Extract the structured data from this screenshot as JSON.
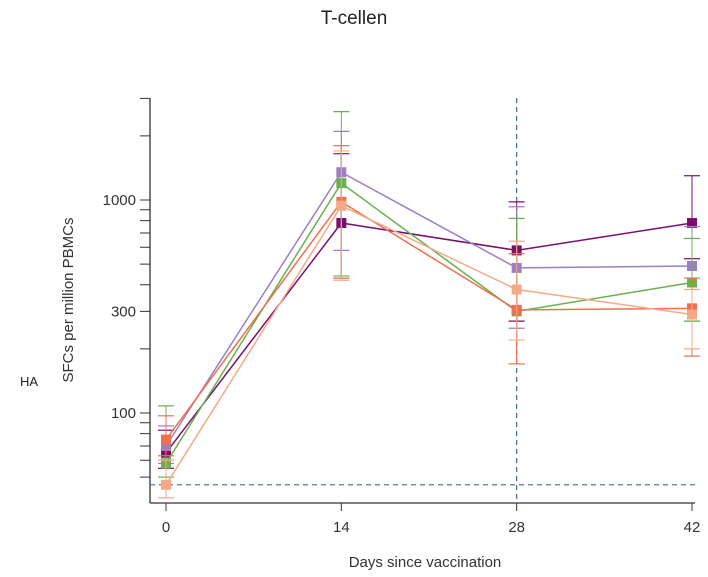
{
  "page": {
    "title": "T-cellen",
    "side_label": "HA"
  },
  "chart_data": {
    "type": "line",
    "title": "T-cellen",
    "xlabel": "Days since vaccination",
    "ylabel": "SFCs per million PBMCs",
    "yscale": "log",
    "ylim": [
      45,
      3000
    ],
    "xlim": [
      0,
      42
    ],
    "x": [
      0,
      14,
      28,
      42
    ],
    "xticks": [
      0,
      14,
      28,
      42
    ],
    "yticks_labeled": [
      100,
      300,
      1000
    ],
    "yticks_minor": [
      50,
      60,
      70,
      80,
      90,
      100,
      200,
      300,
      400,
      500,
      600,
      700,
      800,
      900,
      1000,
      2000,
      3000
    ],
    "reference_lines": {
      "vertical_x": 28,
      "horizontal_y": 46
    },
    "grid": false,
    "series": [
      {
        "color": "#7b0f6e",
        "values": [
          65,
          780,
          580,
          780
        ],
        "err_low": [
          55,
          430,
          270,
          530
        ],
        "err_high": [
          83,
          1650,
          980,
          1300
        ]
      },
      {
        "color": "#9b7fc7",
        "values": [
          70,
          1350,
          480,
          490
        ],
        "err_low": [
          58,
          580,
          250,
          270
        ],
        "err_high": [
          87,
          2100,
          930,
          750
        ]
      },
      {
        "color": "#6ab04c",
        "values": [
          58,
          1200,
          300,
          410
        ],
        "err_low": [
          50,
          440,
          170,
          270
        ],
        "err_high": [
          108,
          2600,
          820,
          660
        ]
      },
      {
        "color": "#ee7050",
        "values": [
          75,
          980,
          305,
          310
        ],
        "err_low": [
          63,
          430,
          170,
          185
        ],
        "err_high": [
          97,
          1800,
          560,
          430
        ]
      },
      {
        "color": "#f4a988",
        "values": [
          46,
          940,
          380,
          290
        ],
        "err_low": [
          40,
          420,
          220,
          200
        ],
        "err_high": [
          60,
          1700,
          640,
          380
        ]
      }
    ]
  }
}
